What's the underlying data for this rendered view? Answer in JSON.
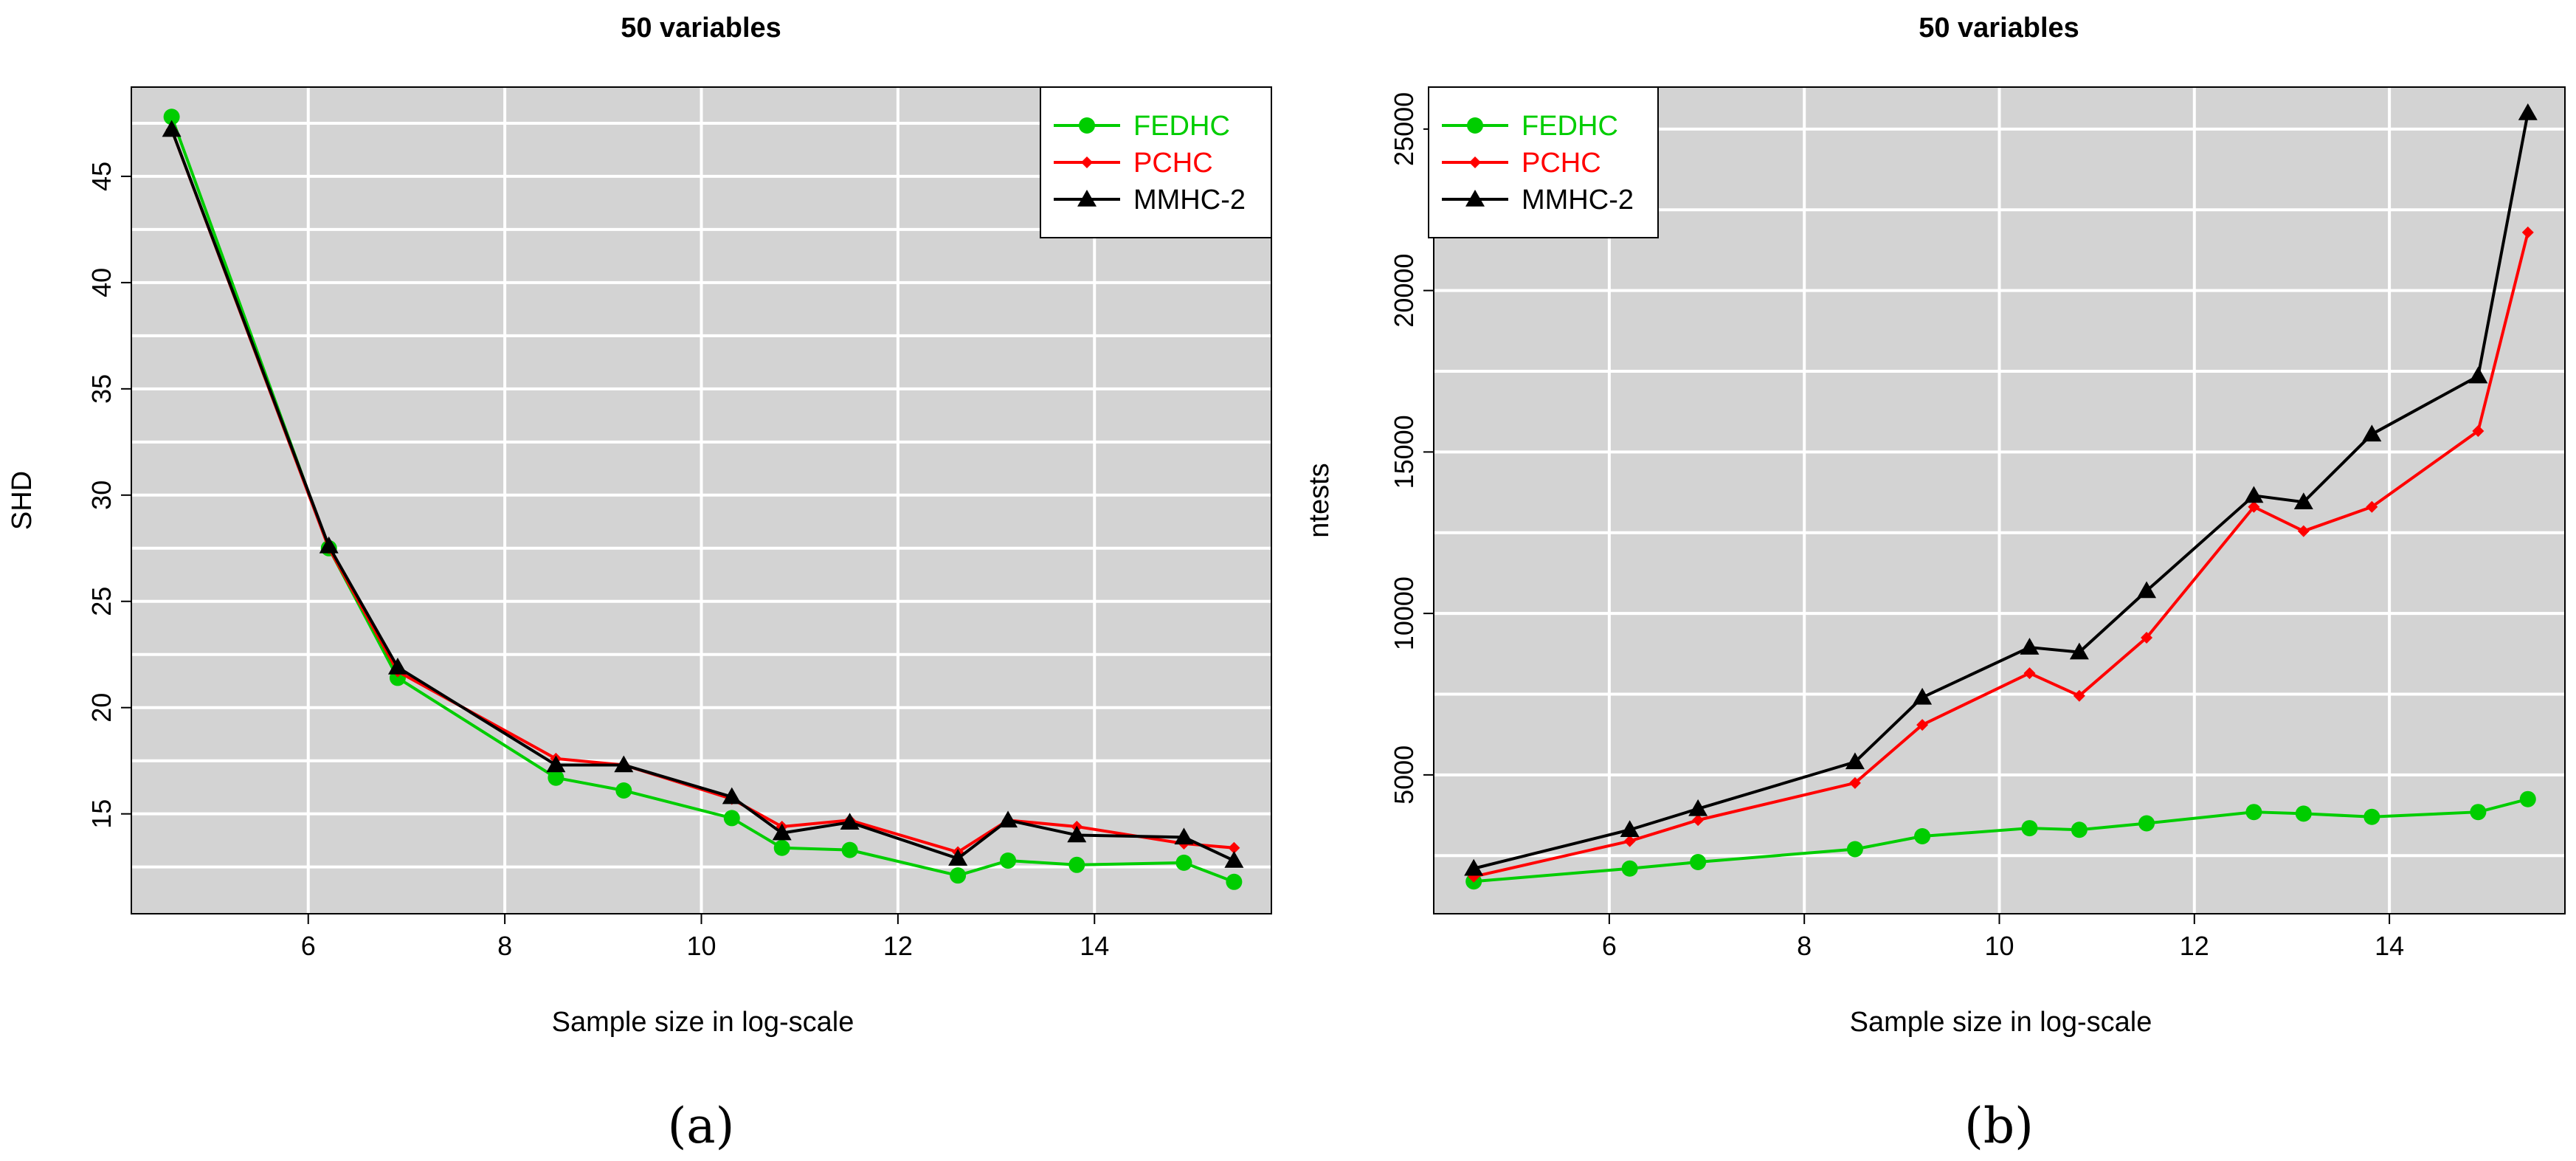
{
  "chart_data": [
    {
      "type": "line",
      "title": "50 variables",
      "xlabel": "Sample size in log-scale",
      "ylabel": "SHD",
      "caption": "(a)",
      "xlim": [
        4.2,
        15.8
      ],
      "ylim": [
        10.3,
        49.2
      ],
      "x_ticks": [
        6,
        8,
        10,
        12,
        14
      ],
      "y_ticks": [
        15,
        20,
        25,
        30,
        35,
        40,
        45
      ],
      "x_grid": [
        4,
        6,
        8,
        10,
        12,
        14
      ],
      "y_grid": [
        10,
        12.5,
        15,
        17.5,
        20,
        22.5,
        25,
        27.5,
        30,
        32.5,
        35,
        37.5,
        40,
        42.5,
        45,
        47.5
      ],
      "background": "#d3d3d3",
      "grid": true,
      "legend_position": "top-right",
      "x": [
        4.61,
        6.21,
        6.91,
        8.52,
        9.21,
        10.31,
        10.82,
        11.51,
        12.61,
        13.12,
        13.82,
        14.91,
        15.42
      ],
      "series": [
        {
          "name": "FEDHC",
          "color": "#00cd00",
          "marker": "circle",
          "values": [
            47.8,
            27.5,
            21.4,
            16.7,
            16.1,
            14.8,
            13.4,
            13.3,
            12.1,
            12.8,
            12.6,
            12.7,
            11.8
          ]
        },
        {
          "name": "PCHC",
          "color": "#ff0000",
          "marker": "diamond",
          "values": [
            47.2,
            27.5,
            21.7,
            17.6,
            17.3,
            15.7,
            14.4,
            14.7,
            13.2,
            14.7,
            14.4,
            13.6,
            13.4
          ]
        },
        {
          "name": "MMHC-2",
          "color": "#000000",
          "marker": "triangle",
          "values": [
            47.2,
            27.6,
            21.9,
            17.3,
            17.3,
            15.8,
            14.1,
            14.6,
            12.9,
            14.7,
            14.0,
            13.9,
            12.8
          ]
        }
      ]
    },
    {
      "type": "line",
      "title": "50 variables",
      "xlabel": "Sample size in log-scale",
      "ylabel": "ntests",
      "caption": "(b)",
      "xlim": [
        4.2,
        15.8
      ],
      "ylim": [
        700,
        26300
      ],
      "x_ticks": [
        6,
        8,
        10,
        12,
        14
      ],
      "y_ticks": [
        5000,
        10000,
        15000,
        20000,
        25000
      ],
      "x_grid": [
        4,
        6,
        8,
        10,
        12,
        14
      ],
      "y_grid": [
        2500,
        5000,
        7500,
        10000,
        12500,
        15000,
        17500,
        20000,
        22500,
        25000
      ],
      "background": "#d3d3d3",
      "grid": true,
      "legend_position": "top-left",
      "x": [
        4.61,
        6.21,
        6.91,
        8.52,
        9.21,
        10.31,
        10.82,
        11.51,
        12.61,
        13.12,
        13.82,
        14.91,
        15.42
      ],
      "series": [
        {
          "name": "FEDHC",
          "color": "#00cd00",
          "marker": "circle",
          "values": [
            1700,
            2100,
            2300,
            2700,
            3100,
            3350,
            3300,
            3500,
            3850,
            3800,
            3700,
            3850,
            4250
          ]
        },
        {
          "name": "PCHC",
          "color": "#ff0000",
          "marker": "diamond",
          "values": [
            1850,
            2950,
            3600,
            4750,
            6550,
            8150,
            7450,
            9250,
            13300,
            12550,
            13300,
            15650,
            21800
          ]
        },
        {
          "name": "MMHC-2",
          "color": "#000000",
          "marker": "triangle",
          "values": [
            2100,
            3300,
            3950,
            5400,
            7400,
            8950,
            8800,
            10700,
            13650,
            13450,
            15550,
            17350,
            25500
          ]
        }
      ]
    }
  ]
}
